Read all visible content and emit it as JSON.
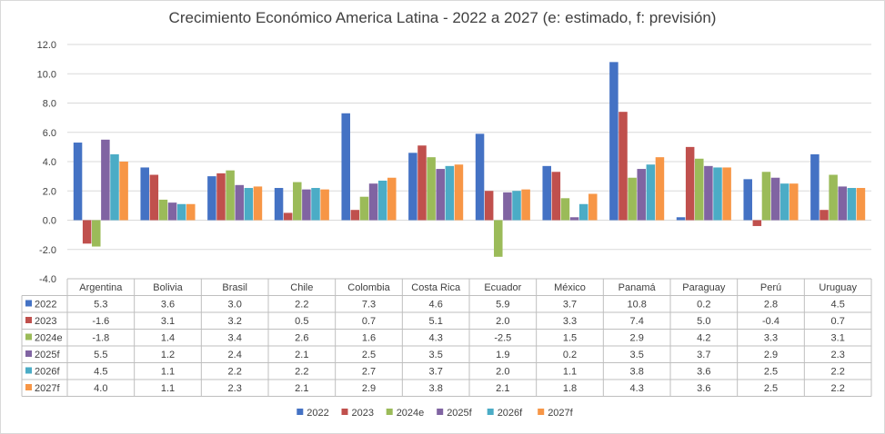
{
  "chart_data": {
    "type": "bar",
    "title": "Crecimiento Económico America Latina - 2022 a 2027 (e: estimado, f: previsión)",
    "categories": [
      "Argentina",
      "Bolivia",
      "Brasil",
      "Chile",
      "Colombia",
      "Costa Rica",
      "Ecuador",
      "México",
      "Panamá",
      "Paraguay",
      "Perú",
      "Uruguay"
    ],
    "series": [
      {
        "name": "2022",
        "color": "#4472c4",
        "values": [
          5.3,
          3.6,
          3.0,
          2.2,
          7.3,
          4.6,
          5.9,
          3.7,
          10.8,
          0.2,
          2.8,
          4.5
        ]
      },
      {
        "name": "2023",
        "color": "#c0504d",
        "values": [
          -1.6,
          3.1,
          3.2,
          0.5,
          0.7,
          5.1,
          2.0,
          3.3,
          7.4,
          5.0,
          -0.4,
          0.7
        ]
      },
      {
        "name": "2024e",
        "color": "#9bbb59",
        "values": [
          -1.8,
          1.4,
          3.4,
          2.6,
          1.6,
          4.3,
          -2.5,
          1.5,
          2.9,
          4.2,
          3.3,
          3.1
        ]
      },
      {
        "name": "2025f",
        "color": "#8064a2",
        "values": [
          5.5,
          1.2,
          2.4,
          2.1,
          2.5,
          3.5,
          1.9,
          0.2,
          3.5,
          3.7,
          2.9,
          2.3
        ]
      },
      {
        "name": "2026f",
        "color": "#4bacc6",
        "values": [
          4.5,
          1.1,
          2.2,
          2.2,
          2.7,
          3.7,
          2.0,
          1.1,
          3.8,
          3.6,
          2.5,
          2.2
        ]
      },
      {
        "name": "2027f",
        "color": "#f79646",
        "values": [
          4.0,
          1.1,
          2.3,
          2.1,
          2.9,
          3.8,
          2.1,
          1.8,
          4.3,
          3.6,
          2.5,
          2.2
        ]
      }
    ],
    "ylim": [
      -4.0,
      12.0
    ],
    "yticks": [
      "12.0",
      "10.0",
      "8.0",
      "6.0",
      "4.0",
      "2.0",
      "0.0",
      "-2.0",
      "-4.0"
    ],
    "grid": true,
    "legend": "bottom",
    "data_table": true
  }
}
